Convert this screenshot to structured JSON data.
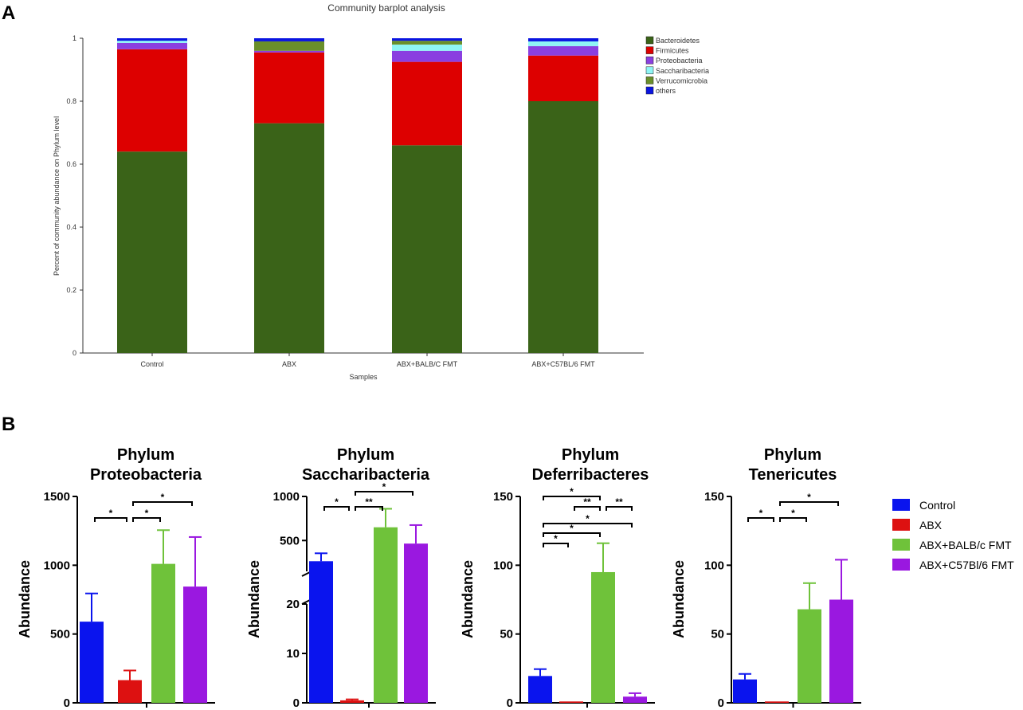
{
  "panel_labels": {
    "a": "A",
    "b": "B"
  },
  "chart_data": [
    {
      "type": "bar",
      "stacked": true,
      "title": "Community barplot analysis",
      "xlabel": "Samples",
      "ylabel": "Percent of community abundance on Phylum level",
      "ylim": [
        0,
        1
      ],
      "yticks": [
        "0",
        "0.2",
        "0.4",
        "0.6",
        "0.8",
        "1"
      ],
      "categories": [
        "Control",
        "ABX",
        "ABX+BALB/C FMT",
        "ABX+C57BL/6 FMT"
      ],
      "series": [
        {
          "name": "Bacteroidetes",
          "color": "#3a6318",
          "values": [
            0.64,
            0.73,
            0.66,
            0.8
          ]
        },
        {
          "name": "Firmicutes",
          "color": "#dd0000",
          "values": [
            0.325,
            0.225,
            0.265,
            0.145
          ]
        },
        {
          "name": "Proteobacteria",
          "color": "#8a3fe0",
          "values": [
            0.02,
            0.005,
            0.035,
            0.03
          ]
        },
        {
          "name": "Saccharibacteria",
          "color": "#8ff5f5",
          "values": [
            0.007,
            0.0,
            0.02,
            0.015
          ]
        },
        {
          "name": "Verrucomicrobia",
          "color": "#6a8f2a",
          "values": [
            0.0,
            0.03,
            0.012,
            0.0
          ]
        },
        {
          "name": "others",
          "color": "#0a14e0",
          "values": [
            0.008,
            0.01,
            0.008,
            0.01
          ]
        }
      ]
    },
    {
      "type": "bar",
      "title_line1": "Phylum",
      "title_line2": "Proteobacteria",
      "ylabel": "Abundance",
      "ylim": [
        0,
        1500
      ],
      "yticks": [
        "0",
        "500",
        "1000",
        "1500"
      ],
      "categories": [
        "Control",
        "ABX",
        "ABX+BALB/c FMT",
        "ABX+C57Bl/6 FMT"
      ],
      "values": [
        590,
        165,
        1010,
        845
      ],
      "errors": [
        205,
        70,
        245,
        360
      ],
      "significance": [
        {
          "from": 0,
          "to": 1,
          "label": "*"
        },
        {
          "from": 1,
          "to": 2,
          "label": "*"
        },
        {
          "from": 1,
          "to": 3,
          "label": "*"
        }
      ]
    },
    {
      "type": "bar",
      "broken_axis": true,
      "title_line1": "Phylum",
      "title_line2": "Saccharibacteria",
      "ylabel": "Abundance",
      "ylim_lower": [
        0,
        20
      ],
      "ylim_upper": [
        150,
        1000
      ],
      "yticks": [
        "0",
        "10",
        "20",
        "500",
        "1000"
      ],
      "categories": [
        "Control",
        "ABX",
        "ABX+BALB/c FMT",
        "ABX+C57Bl/6 FMT"
      ],
      "values": [
        265,
        0.5,
        650,
        465
      ],
      "errors": [
        90,
        0.2,
        210,
        210
      ],
      "significance": [
        {
          "from": 0,
          "to": 1,
          "label": "*"
        },
        {
          "from": 1,
          "to": 2,
          "label": "**"
        },
        {
          "from": 1,
          "to": 3,
          "label": "*"
        }
      ]
    },
    {
      "type": "bar",
      "title_line1": "Phylum",
      "title_line2": "Deferribacteres",
      "ylabel": "Abundance",
      "ylim": [
        0,
        150
      ],
      "yticks": [
        "0",
        "50",
        "100",
        "150"
      ],
      "categories": [
        "Control",
        "ABX",
        "ABX+BALB/c FMT",
        "ABX+C57Bl/6 FMT"
      ],
      "values": [
        19.5,
        1.0,
        95,
        4.5
      ],
      "errors": [
        5,
        0.5,
        21,
        2.5
      ],
      "significance": [
        {
          "from": 0,
          "to": 2,
          "label": "*"
        },
        {
          "from": 1,
          "to": 2,
          "label": "**"
        },
        {
          "from": 2,
          "to": 3,
          "label": "**"
        },
        {
          "from": 0,
          "to": 3,
          "label": "*"
        },
        {
          "from": 0,
          "to": 2,
          "label": "*"
        },
        {
          "from": 0,
          "to": 1,
          "label": "*"
        }
      ]
    },
    {
      "type": "bar",
      "title_line1": "Phylum",
      "title_line2": "Tenericutes",
      "ylabel": "Abundance",
      "ylim": [
        0,
        150
      ],
      "yticks": [
        "0",
        "50",
        "100",
        "150"
      ],
      "categories": [
        "Control",
        "ABX",
        "ABX+BALB/c FMT",
        "ABX+C57Bl/6 FMT"
      ],
      "values": [
        17,
        1.0,
        68,
        75
      ],
      "errors": [
        4,
        0.5,
        19,
        29
      ],
      "significance": [
        {
          "from": 0,
          "to": 1,
          "label": "*"
        },
        {
          "from": 1,
          "to": 2,
          "label": "*"
        },
        {
          "from": 1,
          "to": 3,
          "label": "*"
        }
      ]
    }
  ],
  "legend_b": [
    {
      "label": "Control",
      "color": "#0a14ee"
    },
    {
      "label": "ABX",
      "color": "#dd1111"
    },
    {
      "label": "ABX+BALB/c FMT",
      "color": "#6fc23a"
    },
    {
      "label": "ABX+C57Bl/6 FMT",
      "color": "#9a18e0"
    }
  ]
}
